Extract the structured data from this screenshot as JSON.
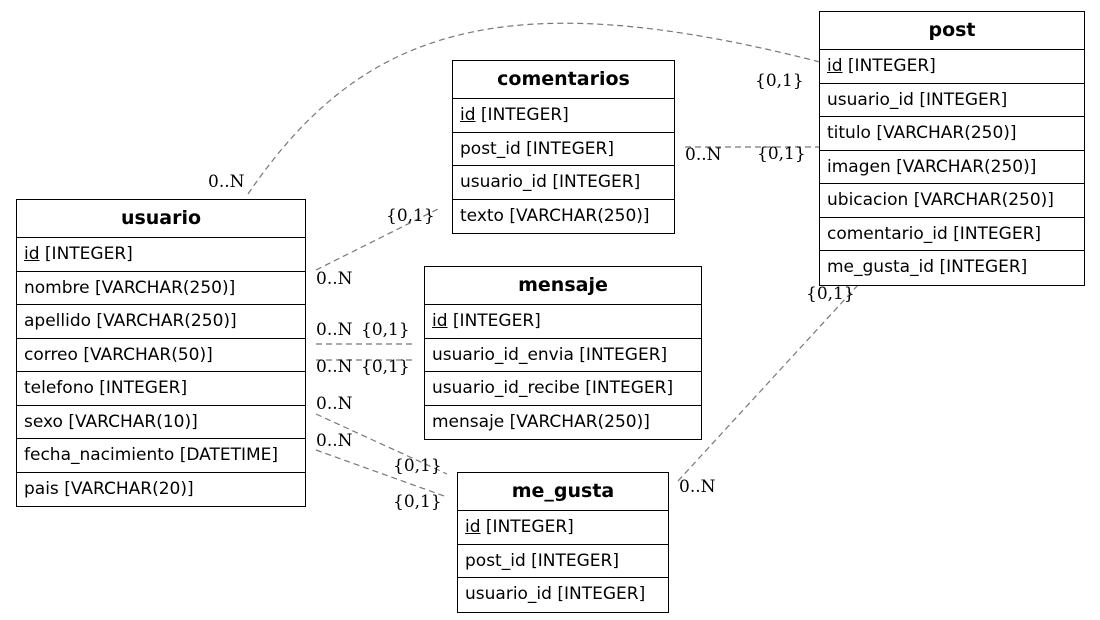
{
  "entities": {
    "usuario": {
      "name": "usuario",
      "rows": [
        {
          "field": "id",
          "type": " [INTEGER]",
          "pk": true
        },
        {
          "field": "nombre",
          "type": " [VARCHAR(250)]"
        },
        {
          "field": "apellido",
          "type": " [VARCHAR(250)]"
        },
        {
          "field": "correo",
          "type": " [VARCHAR(50)]"
        },
        {
          "field": "telefono",
          "type": " [INTEGER]"
        },
        {
          "field": "sexo",
          "type": " [VARCHAR(10)]"
        },
        {
          "field": "fecha_nacimiento",
          "type": " [DATETIME]"
        },
        {
          "field": "pais",
          "type": " [VARCHAR(20)]"
        }
      ]
    },
    "comentarios": {
      "name": "comentarios",
      "rows": [
        {
          "field": "id",
          "type": " [INTEGER]",
          "pk": true
        },
        {
          "field": "post_id",
          "type": " [INTEGER]"
        },
        {
          "field": "usuario_id",
          "type": " [INTEGER]"
        },
        {
          "field": "texto",
          "type": " [VARCHAR(250)]"
        }
      ]
    },
    "mensaje": {
      "name": "mensaje",
      "rows": [
        {
          "field": "id",
          "type": " [INTEGER]",
          "pk": true
        },
        {
          "field": "usuario_id_envia",
          "type": " [INTEGER]"
        },
        {
          "field": "usuario_id_recibe",
          "type": " [INTEGER]"
        },
        {
          "field": "mensaje",
          "type": " [VARCHAR(250)]"
        }
      ]
    },
    "me_gusta": {
      "name": "me_gusta",
      "rows": [
        {
          "field": "id",
          "type": " [INTEGER]",
          "pk": true
        },
        {
          "field": "post_id",
          "type": " [INTEGER]"
        },
        {
          "field": "usuario_id",
          "type": " [INTEGER]"
        }
      ]
    },
    "post": {
      "name": "post",
      "rows": [
        {
          "field": "id",
          "type": " [INTEGER]",
          "pk": true
        },
        {
          "field": "usuario_id",
          "type": " [INTEGER]"
        },
        {
          "field": "titulo",
          "type": " [VARCHAR(250)]"
        },
        {
          "field": "imagen",
          "type": " [VARCHAR(250)]"
        },
        {
          "field": "ubicacion",
          "type": " [VARCHAR(250)]"
        },
        {
          "field": "comentario_id",
          "type": " [INTEGER]"
        },
        {
          "field": "me_gusta_id",
          "type": " [INTEGER]"
        }
      ]
    }
  },
  "relationships": [
    {
      "name": "usuario-post",
      "from": "usuario",
      "to": "post",
      "from_card": "0..N",
      "to_card": "{0,1}"
    },
    {
      "name": "usuario-comentarios",
      "from": "usuario",
      "to": "comentarios",
      "from_card": "0..N",
      "to_card": "{0,1}"
    },
    {
      "name": "comentarios-post",
      "from": "comentarios",
      "to": "post",
      "from_card": "0..N",
      "to_card": "{0,1}"
    },
    {
      "name": "usuario-mensaje-envia",
      "from": "usuario",
      "to": "mensaje",
      "from_card": "0..N",
      "to_card": "{0,1}"
    },
    {
      "name": "usuario-mensaje-recibe",
      "from": "usuario",
      "to": "mensaje",
      "from_card": "0..N",
      "to_card": "{0,1}"
    },
    {
      "name": "usuario-me_gusta-a",
      "from": "usuario",
      "to": "me_gusta",
      "from_card": "0..N",
      "to_card": "{0,1}"
    },
    {
      "name": "usuario-me_gusta-b",
      "from": "usuario",
      "to": "me_gusta",
      "from_card": "0..N",
      "to_card": "{0,1}"
    },
    {
      "name": "me_gusta-post",
      "from": "me_gusta",
      "to": "post",
      "from_card": "0..N",
      "to_card": "{0,1}"
    }
  ],
  "colors": {
    "edge": "#777777",
    "border": "#000000"
  }
}
